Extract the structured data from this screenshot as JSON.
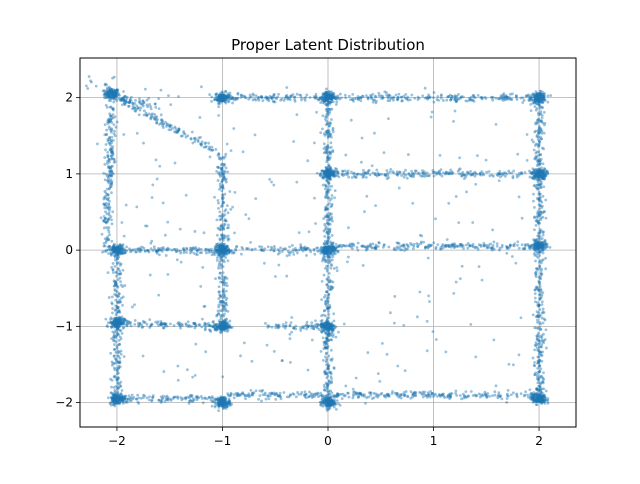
{
  "chart_data": {
    "type": "scatter",
    "title": "Proper Latent Distribution",
    "xlabel": "",
    "ylabel": "",
    "xlim": [
      -2.35,
      2.35
    ],
    "ylim": [
      -2.32,
      2.52
    ],
    "grid": true,
    "legend": "none",
    "point_color": "#1f77b4",
    "grid_color": "#b0b0b0",
    "x_ticks": [
      -2,
      -1,
      0,
      1,
      2
    ],
    "y_ticks": [
      -2,
      -1,
      0,
      1,
      2
    ],
    "x_tick_labels": [
      "−2",
      "−1",
      "0",
      "1",
      "2"
    ],
    "y_tick_labels": [
      "−2",
      "−1",
      "0",
      "1",
      "2"
    ],
    "clusters": [
      {
        "x": -2.05,
        "y": 2.05
      },
      {
        "x": -1.0,
        "y": 2.0
      },
      {
        "x": 0.0,
        "y": 2.0
      },
      {
        "x": 2.0,
        "y": 2.0
      },
      {
        "x": 0.0,
        "y": 1.0
      },
      {
        "x": 2.0,
        "y": 1.0
      },
      {
        "x": -2.0,
        "y": 0.0
      },
      {
        "x": -1.0,
        "y": 0.0
      },
      {
        "x": 0.0,
        "y": 0.0
      },
      {
        "x": 2.0,
        "y": 0.05
      },
      {
        "x": -2.0,
        "y": -0.95
      },
      {
        "x": -1.0,
        "y": -1.0
      },
      {
        "x": 0.0,
        "y": -1.0
      },
      {
        "x": -2.0,
        "y": -1.95
      },
      {
        "x": -1.0,
        "y": -2.0
      },
      {
        "x": 0.0,
        "y": -2.0
      },
      {
        "x": 2.0,
        "y": -1.95
      }
    ],
    "segments": [
      {
        "x1": -2.0,
        "y1": 2.0,
        "x2": -1.65,
        "y2": 1.9
      },
      {
        "x1": -1.0,
        "y1": 2.0,
        "x2": 0.0,
        "y2": 2.0
      },
      {
        "x1": 0.0,
        "y1": 2.0,
        "x2": 2.0,
        "y2": 2.0
      },
      {
        "x1": 0.0,
        "y1": 2.0,
        "x2": 0.0,
        "y2": 1.0
      },
      {
        "x1": 2.0,
        "y1": 2.0,
        "x2": 2.0,
        "y2": -2.0
      },
      {
        "x1": 0.0,
        "y1": 1.0,
        "x2": 2.0,
        "y2": 1.0
      },
      {
        "x1": -2.05,
        "y1": 1.95,
        "x2": -2.1,
        "y2": 0.0
      },
      {
        "x1": -1.0,
        "y1": 1.25,
        "x2": -1.0,
        "y2": 0.0
      },
      {
        "x1": -2.0,
        "y1": 2.0,
        "x2": -1.0,
        "y2": 1.25
      },
      {
        "x1": 0.0,
        "y1": 1.0,
        "x2": 0.0,
        "y2": 0.0
      },
      {
        "x1": -2.0,
        "y1": 0.0,
        "x2": 0.0,
        "y2": 0.0
      },
      {
        "x1": 0.0,
        "y1": 0.05,
        "x2": 2.0,
        "y2": 0.05
      },
      {
        "x1": -2.0,
        "y1": 0.0,
        "x2": -2.0,
        "y2": -2.0
      },
      {
        "x1": -1.0,
        "y1": 0.0,
        "x2": -1.0,
        "y2": -1.0
      },
      {
        "x1": 0.0,
        "y1": 0.0,
        "x2": 0.0,
        "y2": -2.0
      },
      {
        "x1": -2.0,
        "y1": -0.95,
        "x2": -1.0,
        "y2": -1.0
      },
      {
        "x1": -0.55,
        "y1": -1.0,
        "x2": 0.0,
        "y2": -1.0
      },
      {
        "x1": -2.0,
        "y1": -1.95,
        "x2": -1.0,
        "y2": -1.95
      },
      {
        "x1": -0.95,
        "y1": -1.9,
        "x2": 0.0,
        "y2": -1.9
      },
      {
        "x1": 0.0,
        "y1": -1.9,
        "x2": 2.0,
        "y2": -1.9
      }
    ]
  }
}
